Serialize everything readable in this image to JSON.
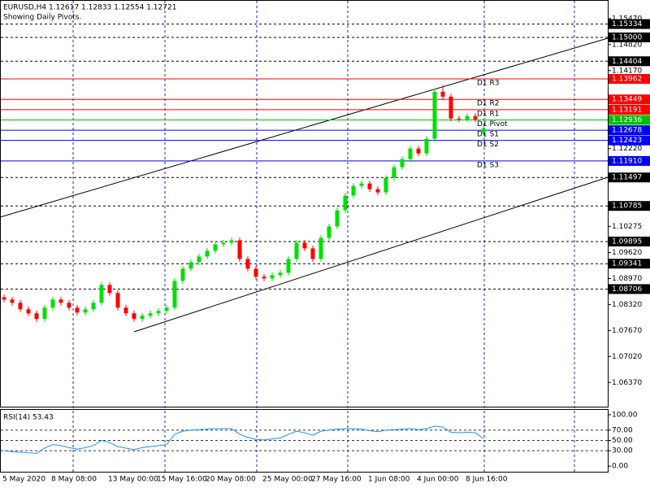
{
  "chart_data": {
    "type": "candlestick",
    "title": "EURUSD,H4  1.12617 1.12833 1.12554 1.12721",
    "subtitle": "Showing Daily Pivots.",
    "up_color": "#00e000",
    "down_color": "#ff0000",
    "categories": [
      "5 May 2020",
      null,
      null,
      null,
      null,
      null,
      "8 May 08:00",
      null,
      null,
      null,
      null,
      null,
      null,
      "13 May 00:00",
      null,
      null,
      null,
      null,
      null,
      "15 May 16:00",
      null,
      null,
      null,
      null,
      null,
      "20 May 08:00",
      null,
      null,
      null,
      null,
      null,
      null,
      "25 May 00:00",
      null,
      null,
      null,
      null,
      null,
      "27 May 16:00",
      null,
      null,
      null,
      null,
      null,
      null,
      "1 Jun 08:00",
      null,
      null,
      null,
      null,
      null,
      "4 Jun 00:00",
      null,
      null,
      null,
      null,
      null,
      "8 Jun 16:00",
      null,
      null
    ],
    "open": [
      1.085,
      1.08444,
      1.08363,
      1.08201,
      1.08099,
      1.07957,
      1.08241,
      1.08444,
      1.08363,
      1.08241,
      1.08119,
      1.08201,
      1.08363,
      1.0881,
      1.08607,
      1.08241,
      1.08099,
      1.07957,
      1.08038,
      1.08099,
      1.0816,
      1.08241,
      1.08911,
      1.09216,
      1.09378,
      1.0952,
      1.09662,
      1.09825,
      1.09865,
      1.09926,
      1.09459,
      1.09216,
      1.09013,
      1.08972,
      1.09053,
      1.09114,
      1.09459,
      1.09865,
      1.09723,
      1.09459,
      1.09987,
      1.10271,
      1.10677,
      1.11043,
      1.11286,
      1.11347,
      1.11205,
      1.11124,
      1.11489,
      1.11753,
      1.11956,
      1.1222,
      1.12098,
      1.12464,
      1.13641,
      1.13519,
      1.12971,
      1.12951,
      1.13032,
      1.12617
    ],
    "high": [
      1.0857,
      1.08514,
      1.08433,
      1.08271,
      1.08169,
      1.08311,
      1.08514,
      1.08514,
      1.08433,
      1.08311,
      1.08271,
      1.08433,
      1.0888,
      1.0888,
      1.08677,
      1.08311,
      1.08169,
      1.08108,
      1.08169,
      1.0823,
      1.08311,
      1.08981,
      1.09286,
      1.09448,
      1.0959,
      1.09732,
      1.09895,
      1.09935,
      1.09996,
      1.09996,
      1.09529,
      1.09286,
      1.09083,
      1.09123,
      1.09184,
      1.09529,
      1.09935,
      1.09935,
      1.09793,
      1.10057,
      1.10341,
      1.10747,
      1.11113,
      1.11356,
      1.11417,
      1.11417,
      1.11275,
      1.11559,
      1.11823,
      1.12026,
      1.1229,
      1.1229,
      1.12534,
      1.13711,
      1.138,
      1.13589,
      1.13041,
      1.13102,
      1.13102,
      1.12833
    ],
    "low": [
      1.08374,
      1.08293,
      1.08131,
      1.08029,
      1.07887,
      1.07887,
      1.08171,
      1.08293,
      1.08171,
      1.08049,
      1.08049,
      1.08131,
      1.08293,
      1.08537,
      1.08171,
      1.08029,
      1.07887,
      1.07887,
      1.07968,
      1.08029,
      1.0809,
      1.08171,
      1.08841,
      1.09146,
      1.09308,
      1.0945,
      1.09592,
      1.09755,
      1.09795,
      1.09389,
      1.09146,
      1.08943,
      1.08902,
      1.08902,
      1.08983,
      1.09044,
      1.09389,
      1.09653,
      1.09389,
      1.09389,
      1.09917,
      1.10201,
      1.10607,
      1.10973,
      1.11216,
      1.11135,
      1.11054,
      1.11054,
      1.11419,
      1.11683,
      1.11886,
      1.12028,
      1.12028,
      1.12394,
      1.13449,
      1.12901,
      1.12881,
      1.12881,
      1.12881,
      1.12554
    ],
    "close": [
      1.08444,
      1.08363,
      1.08201,
      1.08099,
      1.07957,
      1.08241,
      1.08444,
      1.08363,
      1.08241,
      1.08119,
      1.08201,
      1.08363,
      1.0881,
      1.08607,
      1.08241,
      1.08099,
      1.07957,
      1.08038,
      1.08099,
      1.0816,
      1.08241,
      1.08911,
      1.09216,
      1.09378,
      1.0952,
      1.09662,
      1.09825,
      1.09865,
      1.09926,
      1.09459,
      1.09216,
      1.09013,
      1.08972,
      1.09053,
      1.09114,
      1.09459,
      1.09865,
      1.09723,
      1.09459,
      1.09987,
      1.10271,
      1.10677,
      1.11043,
      1.11286,
      1.11347,
      1.11205,
      1.11124,
      1.11489,
      1.11753,
      1.11956,
      1.1222,
      1.12098,
      1.12464,
      1.13641,
      1.13519,
      1.12971,
      1.12951,
      1.13032,
      1.12951,
      1.12721
    ],
    "ylim": [
      1.05765,
      1.15915
    ],
    "yticks": [
      {
        "value": 1.1547,
        "label": "1.15470"
      },
      {
        "value": 1.1482,
        "label": "1.14820"
      },
      {
        "value": 1.1417,
        "label": "1.14170"
      },
      {
        "value": 1.1222,
        "label": "1.12220"
      },
      {
        "value": 1.10275,
        "label": "1.10275"
      },
      {
        "value": 1.0962,
        "label": "1.09620"
      },
      {
        "value": 1.0897,
        "label": "1.08970"
      },
      {
        "value": 1.0832,
        "label": "1.08320"
      },
      {
        "value": 1.0767,
        "label": "1.07670"
      },
      {
        "value": 1.0702,
        "label": "1.07020"
      },
      {
        "value": 1.0637,
        "label": "1.06370"
      }
    ],
    "levels": [
      {
        "name": "D1 R3",
        "value": 1.13962,
        "label": "1.13962",
        "color": "#ff0000"
      },
      {
        "name": "D1 R2",
        "value": 1.13449,
        "label": "1.13449",
        "color": "#ff0000"
      },
      {
        "name": "D1 R1",
        "value": 1.13191,
        "label": "1.13191",
        "color": "#ff0000"
      },
      {
        "name": "D1 Pivot",
        "value": 1.12936,
        "label": "1.12936",
        "color": "#00c000"
      },
      {
        "name": "D1 S1",
        "value": 1.12678,
        "label": "1.12678",
        "color": "#0000ff"
      },
      {
        "name": "D1 S2",
        "value": 1.12423,
        "label": "1.12423",
        "color": "#0000ff"
      },
      {
        "name": "D1 S3",
        "value": 1.1191,
        "label": "1.11910",
        "color": "#0000ff"
      }
    ],
    "lines": [
      {
        "value": 1.15334,
        "label": "1.15334"
      },
      {
        "value": 1.15,
        "label": "1.15000"
      },
      {
        "value": 1.14404,
        "label": "1.14404"
      },
      {
        "value": 1.11497,
        "label": "1.11497"
      },
      {
        "value": 1.10785,
        "label": "1.10785"
      },
      {
        "value": 1.09895,
        "label": "1.09895"
      },
      {
        "value": 1.09341,
        "label": "1.09341"
      },
      {
        "value": 1.08706,
        "label": "1.08706"
      }
    ],
    "indicator": {
      "title": "RSI(14) 53.43",
      "color": "#1e90ff",
      "values": [
        30,
        28,
        27,
        26,
        25,
        35,
        42,
        40,
        36,
        33,
        36,
        40,
        50,
        46,
        38,
        35,
        32,
        36,
        38,
        40,
        42,
        62,
        68,
        70,
        71,
        72,
        73,
        73,
        73,
        62,
        56,
        52,
        51,
        53,
        55,
        62,
        68,
        65,
        60,
        68,
        70,
        72,
        73,
        73,
        72,
        69,
        67,
        70,
        71,
        72,
        73,
        71,
        73,
        78,
        76,
        66,
        65,
        66,
        65,
        53.43
      ],
      "ylim": [
        -10.9,
        109.4
      ],
      "yticks": [
        {
          "value": 100,
          "label": "100.00"
        },
        {
          "value": 70,
          "label": "70.00"
        },
        {
          "value": 50,
          "label": "50.00"
        },
        {
          "value": 30,
          "label": "30.00"
        },
        {
          "value": 0,
          "label": "0.00"
        }
      ]
    }
  }
}
